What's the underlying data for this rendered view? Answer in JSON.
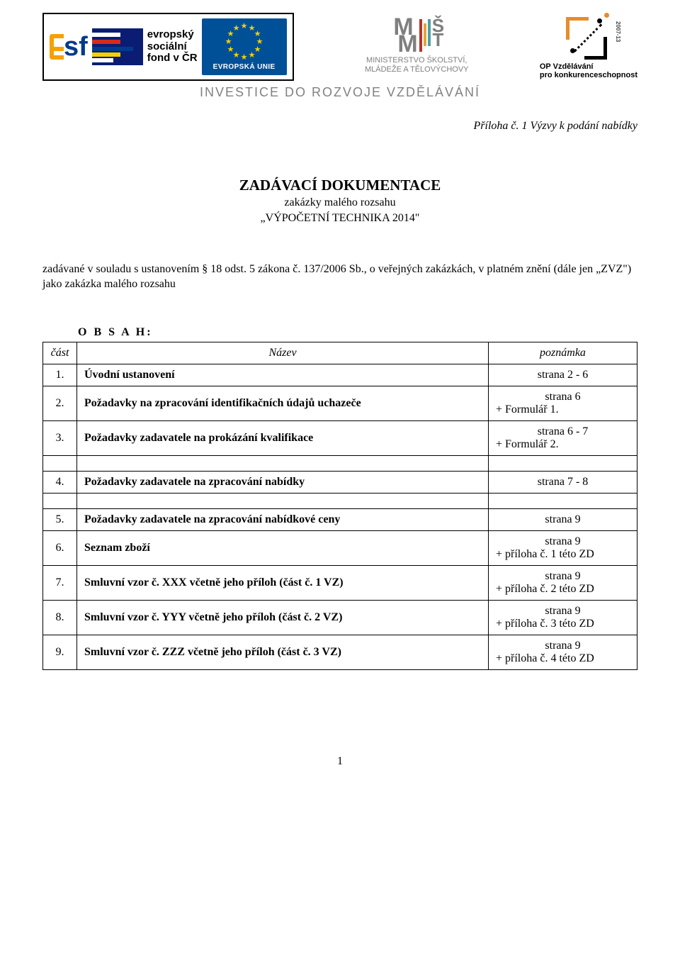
{
  "header": {
    "esf_text_line1": "evropský",
    "esf_text_line2": "sociální",
    "esf_text_line3": "fond v ČR",
    "eu_label": "EVROPSKÁ UNIE",
    "msmt_line1": "MINISTERSTVO ŠKOLSTVÍ,",
    "msmt_line2": "MLÁDEŽE A TĚLOVÝCHOVY",
    "op_line1": "OP Vzdělávání",
    "op_line2": "pro konkurenceschopnost",
    "op_side": "2007-13",
    "investice": "INVESTICE DO ROZVOJE VZDĚLÁVÁNÍ"
  },
  "priloha": "Příloha č. 1 Výzvy k podání nabídky",
  "title": {
    "line1": "ZADÁVACÍ DOKUMENTACE",
    "line2": "zakázky malého rozsahu",
    "line3": "„VÝPOČETNÍ TECHNIKA 2014\""
  },
  "intro": "zadávané v souladu s ustanovením § 18 odst. 5 zákona č. 137/2006 Sb., o veřejných zakázkách, v platném znění (dále jen „ZVZ\") jako zakázka malého rozsahu",
  "obsah_label": "O B S A H:",
  "table": {
    "head": {
      "c1": "část",
      "c2": "Název",
      "c3": "poznámka"
    },
    "rows": [
      {
        "n": "1.",
        "name": "Úvodní ustanovení",
        "note1": "strana 2 - 6",
        "note2": ""
      },
      {
        "n": "2.",
        "name": "Požadavky na zpracování identifikačních údajů uchazeče",
        "note1": "strana 6",
        "note2": "+ Formulář 1."
      },
      {
        "n": "3.",
        "name": "Požadavky zadavatele na prokázání kvalifikace",
        "note1": "strana 6 - 7",
        "note2": "+ Formulář 2."
      },
      {
        "spacer": true
      },
      {
        "n": "4.",
        "name": "Požadavky zadavatele na zpracování nabídky",
        "note1": "strana 7 - 8",
        "note2": ""
      },
      {
        "spacer": true
      },
      {
        "n": "5.",
        "name": "Požadavky zadavatele na zpracování nabídkové ceny",
        "note1": "strana 9",
        "note2": ""
      },
      {
        "n": "6.",
        "name": "Seznam zboží",
        "note1": "strana 9",
        "note2": "+ příloha č. 1 této ZD"
      },
      {
        "n": "7.",
        "name": "Smluvní vzor č. XXX včetně jeho příloh (část č. 1 VZ)",
        "note1": "strana 9",
        "note2": "+ příloha č. 2 této ZD"
      },
      {
        "n": "8.",
        "name": "Smluvní vzor č. YYY včetně jeho příloh (část č. 2 VZ)",
        "note1": "strana 9",
        "note2": "+ příloha č. 3 této ZD"
      },
      {
        "n": "9.",
        "name": "Smluvní vzor č. ZZZ včetně jeho příloh (část č. 3 VZ)",
        "note1": "strana 9",
        "note2": "+ příloha č. 4 této ZD"
      }
    ]
  },
  "page_number": "1",
  "colors": {
    "eu_blue": "#005098",
    "esf_blue": "#0a1d73",
    "star_yellow": "#f5d000",
    "gray_text": "#818181",
    "orange": "#f6a100"
  }
}
